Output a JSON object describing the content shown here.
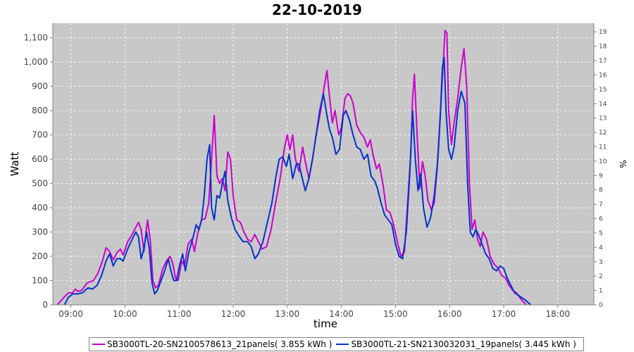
{
  "chart_data": {
    "type": "line",
    "title": "22-10-2019",
    "xlabel": "time",
    "ylabel": "Watt",
    "y2label": "%",
    "ylim": [
      0,
      1160
    ],
    "y2lim": [
      0,
      19.6
    ],
    "xlim": [
      "08:40",
      "18:40"
    ],
    "grid": true,
    "legend_position": "bottom",
    "x_ticks": [
      "09:00",
      "10:00",
      "11:00",
      "12:00",
      "13:00",
      "14:00",
      "15:00",
      "16:00",
      "17:00",
      "18:00"
    ],
    "y_ticks": [
      "0",
      "100",
      "200",
      "300",
      "400",
      "500",
      "600",
      "700",
      "800",
      "900",
      "1,000",
      "1,100"
    ],
    "y2_ticks": [
      "0",
      "1",
      "2",
      "3",
      "4",
      "5",
      "6",
      "7",
      "8",
      "9",
      "10",
      "11",
      "12",
      "13",
      "14",
      "15",
      "16",
      "17",
      "18",
      "19"
    ],
    "series": [
      {
        "name": "SB3000TL-20-SN2100578613_21panels( 3.855 kWh )",
        "color": "#cc00cc",
        "points": [
          [
            "08:45",
            0
          ],
          [
            "08:52",
            30
          ],
          [
            "08:57",
            48
          ],
          [
            "09:02",
            50
          ],
          [
            "09:05",
            65
          ],
          [
            "09:08",
            55
          ],
          [
            "09:12",
            60
          ],
          [
            "09:18",
            90
          ],
          [
            "09:25",
            100
          ],
          [
            "09:30",
            130
          ],
          [
            "09:35",
            180
          ],
          [
            "09:39",
            235
          ],
          [
            "09:43",
            220
          ],
          [
            "09:47",
            185
          ],
          [
            "09:51",
            215
          ],
          [
            "09:55",
            230
          ],
          [
            "09:58",
            205
          ],
          [
            "10:03",
            260
          ],
          [
            "10:08",
            290
          ],
          [
            "10:12",
            320
          ],
          [
            "10:15",
            340
          ],
          [
            "10:18",
            310
          ],
          [
            "10:21",
            220
          ],
          [
            "10:25",
            350
          ],
          [
            "10:28",
            270
          ],
          [
            "10:31",
            100
          ],
          [
            "10:34",
            70
          ],
          [
            "10:37",
            80
          ],
          [
            "10:42",
            150
          ],
          [
            "10:46",
            180
          ],
          [
            "10:50",
            200
          ],
          [
            "10:53",
            170
          ],
          [
            "10:56",
            110
          ],
          [
            "10:59",
            100
          ],
          [
            "11:03",
            180
          ],
          [
            "11:06",
            160
          ],
          [
            "11:10",
            250
          ],
          [
            "11:14",
            270
          ],
          [
            "11:17",
            220
          ],
          [
            "11:21",
            300
          ],
          [
            "11:25",
            350
          ],
          [
            "11:29",
            355
          ],
          [
            "11:33",
            420
          ],
          [
            "11:36",
            600
          ],
          [
            "11:39",
            780
          ],
          [
            "11:42",
            530
          ],
          [
            "11:45",
            500
          ],
          [
            "11:48",
            520
          ],
          [
            "11:51",
            470
          ],
          [
            "11:54",
            630
          ],
          [
            "11:57",
            600
          ],
          [
            "12:00",
            450
          ],
          [
            "12:04",
            350
          ],
          [
            "12:08",
            340
          ],
          [
            "12:12",
            300
          ],
          [
            "12:16",
            270
          ],
          [
            "12:20",
            260
          ],
          [
            "12:24",
            290
          ],
          [
            "12:28",
            260
          ],
          [
            "12:32",
            230
          ],
          [
            "12:37",
            240
          ],
          [
            "12:42",
            310
          ],
          [
            "12:47",
            420
          ],
          [
            "12:52",
            520
          ],
          [
            "12:57",
            650
          ],
          [
            "13:00",
            700
          ],
          [
            "13:03",
            640
          ],
          [
            "13:06",
            700
          ],
          [
            "13:09",
            600
          ],
          [
            "13:13",
            550
          ],
          [
            "13:17",
            650
          ],
          [
            "13:20",
            590
          ],
          [
            "13:24",
            520
          ],
          [
            "13:28",
            600
          ],
          [
            "13:32",
            700
          ],
          [
            "13:37",
            800
          ],
          [
            "13:41",
            900
          ],
          [
            "13:44",
            965
          ],
          [
            "13:47",
            850
          ],
          [
            "13:50",
            750
          ],
          [
            "13:53",
            800
          ],
          [
            "13:57",
            700
          ],
          [
            "14:00",
            730
          ],
          [
            "14:04",
            850
          ],
          [
            "14:07",
            870
          ],
          [
            "14:10",
            860
          ],
          [
            "14:13",
            830
          ],
          [
            "14:17",
            740
          ],
          [
            "14:21",
            710
          ],
          [
            "14:25",
            690
          ],
          [
            "14:29",
            650
          ],
          [
            "14:32",
            680
          ],
          [
            "14:35",
            620
          ],
          [
            "14:39",
            560
          ],
          [
            "14:42",
            580
          ],
          [
            "14:46",
            500
          ],
          [
            "14:50",
            390
          ],
          [
            "14:54",
            380
          ],
          [
            "14:58",
            330
          ],
          [
            "15:02",
            260
          ],
          [
            "15:06",
            200
          ],
          [
            "15:10",
            220
          ],
          [
            "15:14",
            450
          ],
          [
            "15:17",
            630
          ],
          [
            "15:19",
            850
          ],
          [
            "15:21",
            950
          ],
          [
            "15:24",
            700
          ],
          [
            "15:27",
            480
          ],
          [
            "15:30",
            590
          ],
          [
            "15:33",
            530
          ],
          [
            "15:36",
            430
          ],
          [
            "15:40",
            390
          ],
          [
            "15:43",
            420
          ],
          [
            "15:46",
            550
          ],
          [
            "15:50",
            800
          ],
          [
            "15:53",
            1000
          ],
          [
            "15:55",
            1130
          ],
          [
            "15:57",
            1120
          ],
          [
            "15:59",
            800
          ],
          [
            "16:02",
            660
          ],
          [
            "16:05",
            750
          ],
          [
            "16:09",
            850
          ],
          [
            "16:13",
            980
          ],
          [
            "16:16",
            1055
          ],
          [
            "16:19",
            900
          ],
          [
            "16:22",
            500
          ],
          [
            "16:25",
            310
          ],
          [
            "16:28",
            350
          ],
          [
            "16:31",
            270
          ],
          [
            "16:34",
            240
          ],
          [
            "16:37",
            300
          ],
          [
            "16:41",
            270
          ],
          [
            "16:45",
            200
          ],
          [
            "16:49",
            170
          ],
          [
            "16:54",
            150
          ],
          [
            "16:58",
            120
          ],
          [
            "17:02",
            110
          ],
          [
            "17:06",
            80
          ],
          [
            "17:10",
            60
          ],
          [
            "17:14",
            50
          ],
          [
            "17:20",
            20
          ],
          [
            "17:25",
            0
          ]
        ]
      },
      {
        "name": "SB3000TL-21-SN2130032031_19panels( 3.445 kWh )",
        "color": "#0033cc",
        "points": [
          [
            "08:53",
            0
          ],
          [
            "08:57",
            30
          ],
          [
            "09:02",
            45
          ],
          [
            "09:08",
            45
          ],
          [
            "09:13",
            50
          ],
          [
            "09:19",
            70
          ],
          [
            "09:24",
            65
          ],
          [
            "09:29",
            80
          ],
          [
            "09:34",
            120
          ],
          [
            "09:39",
            180
          ],
          [
            "09:43",
            210
          ],
          [
            "09:47",
            160
          ],
          [
            "09:51",
            190
          ],
          [
            "09:55",
            190
          ],
          [
            "09:58",
            180
          ],
          [
            "10:03",
            230
          ],
          [
            "10:08",
            270
          ],
          [
            "10:12",
            300
          ],
          [
            "10:15",
            280
          ],
          [
            "10:18",
            190
          ],
          [
            "10:21",
            230
          ],
          [
            "10:24",
            300
          ],
          [
            "10:27",
            230
          ],
          [
            "10:30",
            90
          ],
          [
            "10:33",
            45
          ],
          [
            "10:36",
            60
          ],
          [
            "10:40",
            100
          ],
          [
            "10:44",
            140
          ],
          [
            "10:48",
            190
          ],
          [
            "10:51",
            140
          ],
          [
            "10:54",
            100
          ],
          [
            "10:57",
            100
          ],
          [
            "11:01",
            170
          ],
          [
            "11:04",
            210
          ],
          [
            "11:07",
            140
          ],
          [
            "11:11",
            220
          ],
          [
            "11:15",
            270
          ],
          [
            "11:19",
            330
          ],
          [
            "11:22",
            310
          ],
          [
            "11:25",
            350
          ],
          [
            "11:28",
            450
          ],
          [
            "11:31",
            600
          ],
          [
            "11:34",
            660
          ],
          [
            "11:36",
            400
          ],
          [
            "11:39",
            350
          ],
          [
            "11:42",
            450
          ],
          [
            "11:45",
            440
          ],
          [
            "11:48",
            500
          ],
          [
            "11:51",
            550
          ],
          [
            "11:54",
            430
          ],
          [
            "11:58",
            360
          ],
          [
            "12:02",
            310
          ],
          [
            "12:07",
            280
          ],
          [
            "12:11",
            260
          ],
          [
            "12:16",
            260
          ],
          [
            "12:20",
            240
          ],
          [
            "12:24",
            190
          ],
          [
            "12:28",
            210
          ],
          [
            "12:33",
            260
          ],
          [
            "12:38",
            340
          ],
          [
            "12:43",
            420
          ],
          [
            "12:47",
            520
          ],
          [
            "12:51",
            600
          ],
          [
            "12:55",
            610
          ],
          [
            "12:59",
            570
          ],
          [
            "13:02",
            620
          ],
          [
            "13:06",
            520
          ],
          [
            "13:10",
            580
          ],
          [
            "13:13",
            580
          ],
          [
            "13:16",
            530
          ],
          [
            "13:20",
            470
          ],
          [
            "13:24",
            520
          ],
          [
            "13:28",
            600
          ],
          [
            "13:32",
            700
          ],
          [
            "13:36",
            800
          ],
          [
            "13:40",
            870
          ],
          [
            "13:44",
            780
          ],
          [
            "13:47",
            720
          ],
          [
            "13:50",
            690
          ],
          [
            "13:54",
            620
          ],
          [
            "13:58",
            640
          ],
          [
            "14:02",
            780
          ],
          [
            "14:05",
            800
          ],
          [
            "14:09",
            760
          ],
          [
            "14:13",
            700
          ],
          [
            "14:17",
            650
          ],
          [
            "14:21",
            640
          ],
          [
            "14:25",
            600
          ],
          [
            "14:29",
            620
          ],
          [
            "14:33",
            530
          ],
          [
            "14:37",
            510
          ],
          [
            "14:40",
            480
          ],
          [
            "14:44",
            420
          ],
          [
            "14:48",
            370
          ],
          [
            "14:52",
            350
          ],
          [
            "14:56",
            330
          ],
          [
            "15:00",
            250
          ],
          [
            "15:04",
            200
          ],
          [
            "15:08",
            190
          ],
          [
            "15:12",
            300
          ],
          [
            "15:16",
            550
          ],
          [
            "15:19",
            800
          ],
          [
            "15:22",
            600
          ],
          [
            "15:25",
            470
          ],
          [
            "15:28",
            540
          ],
          [
            "15:31",
            400
          ],
          [
            "15:35",
            320
          ],
          [
            "15:39",
            360
          ],
          [
            "15:43",
            450
          ],
          [
            "15:47",
            600
          ],
          [
            "15:50",
            800
          ],
          [
            "15:52",
            980
          ],
          [
            "15:54",
            1020
          ],
          [
            "15:56",
            800
          ],
          [
            "15:59",
            640
          ],
          [
            "16:02",
            600
          ],
          [
            "16:05",
            650
          ],
          [
            "16:09",
            800
          ],
          [
            "16:13",
            880
          ],
          [
            "16:17",
            830
          ],
          [
            "16:20",
            500
          ],
          [
            "16:23",
            300
          ],
          [
            "16:26",
            280
          ],
          [
            "16:29",
            310
          ],
          [
            "16:32",
            290
          ],
          [
            "16:36",
            250
          ],
          [
            "16:40",
            210
          ],
          [
            "16:44",
            190
          ],
          [
            "16:48",
            150
          ],
          [
            "16:52",
            140
          ],
          [
            "16:56",
            160
          ],
          [
            "17:00",
            150
          ],
          [
            "17:04",
            110
          ],
          [
            "17:08",
            80
          ],
          [
            "17:12",
            50
          ],
          [
            "17:16",
            40
          ],
          [
            "17:20",
            30
          ],
          [
            "17:24",
            20
          ],
          [
            "17:27",
            10
          ],
          [
            "17:30",
            0
          ]
        ]
      }
    ]
  }
}
